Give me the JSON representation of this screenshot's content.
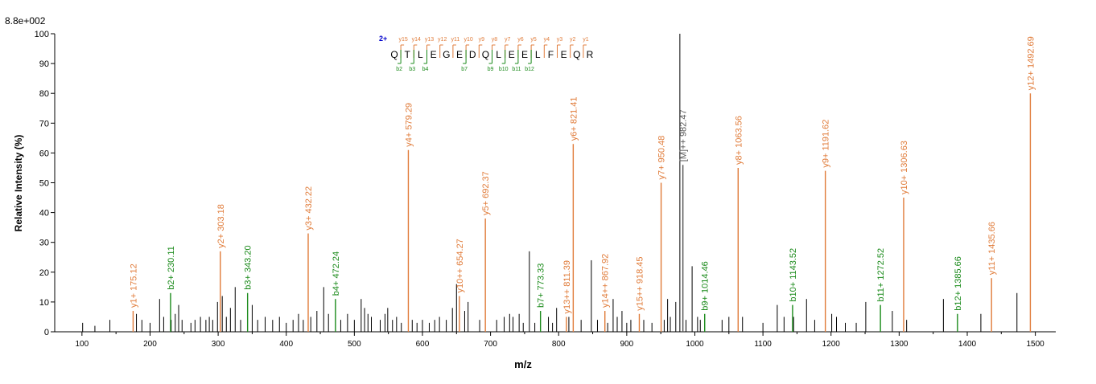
{
  "chart_data": {
    "type": "bar",
    "subtype": "mass-spectrum",
    "max_intensity_label": "8.8e+002",
    "xlabel": "m/z",
    "ylabel": "Relative   Intensity (%)",
    "xlim": [
      60,
      1530
    ],
    "ylim": [
      0,
      100
    ],
    "x_ticks": [
      100,
      200,
      300,
      400,
      500,
      600,
      700,
      800,
      900,
      1000,
      1100,
      1200,
      1300,
      1400,
      1500
    ],
    "y_ticks": [
      0,
      10,
      20,
      30,
      40,
      50,
      60,
      70,
      80,
      90,
      100
    ],
    "colors": {
      "y_ion": "#e07b39",
      "b_ion": "#1a8a1a",
      "precursor": "#555555",
      "unassigned": "#000000",
      "charge": "#0000cc"
    },
    "peptide": {
      "charge_label": "2+",
      "sequence": [
        "Q",
        "T",
        "L",
        "E",
        "G",
        "E",
        "D",
        "Q",
        "L",
        "E",
        "E",
        "L",
        "F",
        "E",
        "Q",
        "R"
      ],
      "y_labels": [
        "y15",
        "y14",
        "y13",
        "y12",
        "y11",
        "y10",
        "y9",
        "y8",
        "y7",
        "y6",
        "y5",
        "y4",
        "y3",
        "y2",
        "y1"
      ],
      "b_labels": [
        "b2",
        "b3",
        "b4",
        "b7",
        "b9",
        "b10",
        "b11",
        "b12"
      ],
      "b_positions": [
        1,
        2,
        3,
        6,
        8,
        9,
        10,
        11
      ]
    },
    "annotated_peaks": [
      {
        "mz": 175.12,
        "intensity": 7,
        "ion": "y",
        "label": "y1+ 175.12"
      },
      {
        "mz": 230.11,
        "intensity": 13,
        "ion": "b",
        "label": "b2+ 230.11"
      },
      {
        "mz": 303.18,
        "intensity": 27,
        "ion": "y",
        "label": "y2+ 303.18"
      },
      {
        "mz": 343.2,
        "intensity": 13,
        "ion": "b",
        "label": "b3+ 343.20"
      },
      {
        "mz": 432.22,
        "intensity": 33,
        "ion": "y",
        "label": "y3+ 432.22"
      },
      {
        "mz": 472.24,
        "intensity": 11,
        "ion": "b",
        "label": "b4+ 472.24"
      },
      {
        "mz": 579.29,
        "intensity": 61,
        "ion": "y",
        "label": "y4+ 579.29"
      },
      {
        "mz": 654.27,
        "intensity": 12,
        "ion": "y",
        "label": "y10++ 654.27"
      },
      {
        "mz": 692.37,
        "intensity": 38,
        "ion": "y",
        "label": "y5+ 692.37"
      },
      {
        "mz": 773.33,
        "intensity": 7,
        "ion": "b",
        "label": "b7+ 773.33"
      },
      {
        "mz": 811.39,
        "intensity": 5,
        "ion": "y",
        "label": "y13++ 811.39"
      },
      {
        "mz": 821.41,
        "intensity": 63,
        "ion": "y",
        "label": "y6+ 821.41"
      },
      {
        "mz": 867.92,
        "intensity": 7,
        "ion": "y",
        "label": "y14++ 867.92"
      },
      {
        "mz": 918.45,
        "intensity": 6,
        "ion": "y",
        "label": "y15++ 918.45"
      },
      {
        "mz": 950.48,
        "intensity": 50,
        "ion": "y",
        "label": "y7+ 950.48"
      },
      {
        "mz": 982.47,
        "intensity": 56,
        "ion": "precursor",
        "label": "[M]++ 982.47"
      },
      {
        "mz": 1014.46,
        "intensity": 6,
        "ion": "b",
        "label": "b9+ 1014.46"
      },
      {
        "mz": 1063.56,
        "intensity": 55,
        "ion": "y",
        "label": "y8+ 1063.56"
      },
      {
        "mz": 1143.52,
        "intensity": 9,
        "ion": "b",
        "label": "b10+ 1143.52"
      },
      {
        "mz": 1191.62,
        "intensity": 54,
        "ion": "y",
        "label": "y9+ 1191.62"
      },
      {
        "mz": 1272.52,
        "intensity": 9,
        "ion": "b",
        "label": "b11+ 1272.52"
      },
      {
        "mz": 1306.63,
        "intensity": 45,
        "ion": "y",
        "label": "y10+ 1306.63"
      },
      {
        "mz": 1385.66,
        "intensity": 6,
        "ion": "b",
        "label": "b12+ 1385.66"
      },
      {
        "mz": 1435.66,
        "intensity": 18,
        "ion": "y",
        "label": "y11+ 1435.66"
      },
      {
        "mz": 1492.69,
        "intensity": 80,
        "ion": "y",
        "label": "y12+ 1492.69"
      }
    ],
    "unassigned_peaks": [
      [
        101,
        3
      ],
      [
        119,
        2
      ],
      [
        141,
        4
      ],
      [
        180,
        6
      ],
      [
        188,
        4
      ],
      [
        200,
        3
      ],
      [
        214,
        11
      ],
      [
        220,
        5
      ],
      [
        231,
        4
      ],
      [
        237,
        6
      ],
      [
        242,
        9
      ],
      [
        247,
        4
      ],
      [
        260,
        3
      ],
      [
        266,
        4
      ],
      [
        274,
        5
      ],
      [
        282,
        4
      ],
      [
        287,
        5
      ],
      [
        292,
        4
      ],
      [
        299,
        10
      ],
      [
        306,
        12
      ],
      [
        312,
        5
      ],
      [
        318,
        8
      ],
      [
        325,
        15
      ],
      [
        333,
        4
      ],
      [
        350,
        9
      ],
      [
        358,
        4
      ],
      [
        369,
        5
      ],
      [
        380,
        4
      ],
      [
        390,
        5
      ],
      [
        400,
        3
      ],
      [
        410,
        4
      ],
      [
        418,
        6
      ],
      [
        425,
        4
      ],
      [
        436,
        5
      ],
      [
        445,
        7
      ],
      [
        455,
        15
      ],
      [
        462,
        6
      ],
      [
        480,
        4
      ],
      [
        490,
        6
      ],
      [
        500,
        4
      ],
      [
        510,
        11
      ],
      [
        515,
        8
      ],
      [
        520,
        6
      ],
      [
        525,
        5
      ],
      [
        538,
        4
      ],
      [
        545,
        6
      ],
      [
        549,
        8
      ],
      [
        556,
        4
      ],
      [
        562,
        5
      ],
      [
        569,
        3
      ],
      [
        585,
        4
      ],
      [
        592,
        3
      ],
      [
        600,
        4
      ],
      [
        610,
        3
      ],
      [
        618,
        4
      ],
      [
        625,
        5
      ],
      [
        635,
        4
      ],
      [
        644,
        8
      ],
      [
        650,
        16
      ],
      [
        662,
        7
      ],
      [
        667,
        10
      ],
      [
        684,
        4
      ],
      [
        709,
        4
      ],
      [
        720,
        5
      ],
      [
        728,
        6
      ],
      [
        733,
        5
      ],
      [
        742,
        6
      ],
      [
        748,
        3
      ],
      [
        757,
        27
      ],
      [
        765,
        3
      ],
      [
        785,
        5
      ],
      [
        791,
        3
      ],
      [
        797,
        8
      ],
      [
        815,
        5
      ],
      [
        833,
        4
      ],
      [
        848,
        24
      ],
      [
        857,
        4
      ],
      [
        872,
        3
      ],
      [
        880,
        11
      ],
      [
        886,
        5
      ],
      [
        893,
        7
      ],
      [
        900,
        3
      ],
      [
        906,
        4
      ],
      [
        925,
        4
      ],
      [
        937,
        3
      ],
      [
        955,
        4
      ],
      [
        960,
        11
      ],
      [
        964,
        5
      ],
      [
        972,
        10
      ],
      [
        978,
        100
      ],
      [
        987,
        4
      ],
      [
        996,
        22
      ],
      [
        1004,
        5
      ],
      [
        1008,
        4
      ],
      [
        1040,
        4
      ],
      [
        1050,
        5
      ],
      [
        1070,
        5
      ],
      [
        1100,
        3
      ],
      [
        1121,
        9
      ],
      [
        1131,
        5
      ],
      [
        1145,
        5
      ],
      [
        1164,
        11
      ],
      [
        1176,
        4
      ],
      [
        1201,
        6
      ],
      [
        1208,
        5
      ],
      [
        1221,
        3
      ],
      [
        1237,
        3
      ],
      [
        1251,
        10
      ],
      [
        1290,
        7
      ],
      [
        1311,
        4
      ],
      [
        1365,
        11
      ],
      [
        1420,
        6
      ],
      [
        1473,
        13
      ]
    ]
  }
}
